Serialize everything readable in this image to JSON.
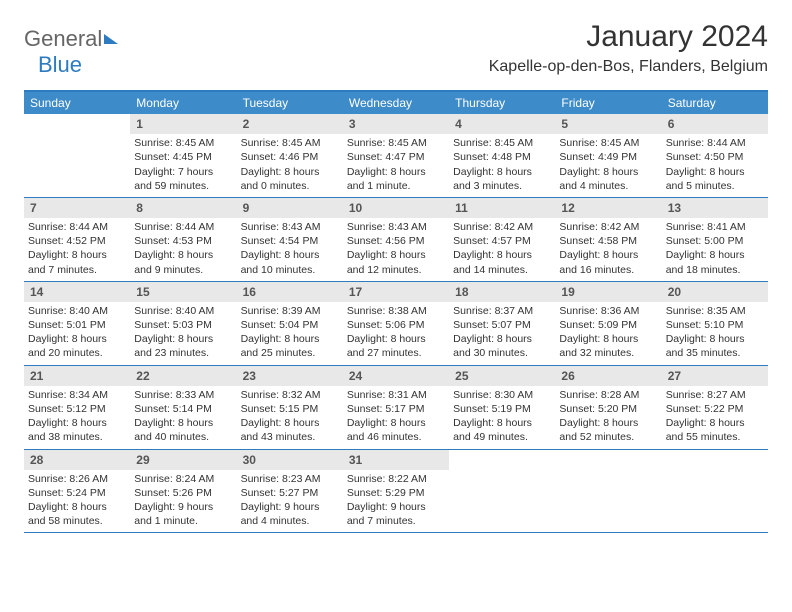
{
  "brand": {
    "part1": "General",
    "part2": "Blue"
  },
  "title": "January 2024",
  "location": "Kapelle-op-den-Bos, Flanders, Belgium",
  "colors": {
    "accent": "#2d7bc0",
    "header_bg": "#3d8bc8",
    "daynum_bg": "#e8e8e8",
    "text": "#333333"
  },
  "day_names": [
    "Sunday",
    "Monday",
    "Tuesday",
    "Wednesday",
    "Thursday",
    "Friday",
    "Saturday"
  ],
  "weeks": [
    [
      null,
      {
        "n": "1",
        "sr": "Sunrise: 8:45 AM",
        "ss": "Sunset: 4:45 PM",
        "dl": "Daylight: 7 hours and 59 minutes."
      },
      {
        "n": "2",
        "sr": "Sunrise: 8:45 AM",
        "ss": "Sunset: 4:46 PM",
        "dl": "Daylight: 8 hours and 0 minutes."
      },
      {
        "n": "3",
        "sr": "Sunrise: 8:45 AM",
        "ss": "Sunset: 4:47 PM",
        "dl": "Daylight: 8 hours and 1 minute."
      },
      {
        "n": "4",
        "sr": "Sunrise: 8:45 AM",
        "ss": "Sunset: 4:48 PM",
        "dl": "Daylight: 8 hours and 3 minutes."
      },
      {
        "n": "5",
        "sr": "Sunrise: 8:45 AM",
        "ss": "Sunset: 4:49 PM",
        "dl": "Daylight: 8 hours and 4 minutes."
      },
      {
        "n": "6",
        "sr": "Sunrise: 8:44 AM",
        "ss": "Sunset: 4:50 PM",
        "dl": "Daylight: 8 hours and 5 minutes."
      }
    ],
    [
      {
        "n": "7",
        "sr": "Sunrise: 8:44 AM",
        "ss": "Sunset: 4:52 PM",
        "dl": "Daylight: 8 hours and 7 minutes."
      },
      {
        "n": "8",
        "sr": "Sunrise: 8:44 AM",
        "ss": "Sunset: 4:53 PM",
        "dl": "Daylight: 8 hours and 9 minutes."
      },
      {
        "n": "9",
        "sr": "Sunrise: 8:43 AM",
        "ss": "Sunset: 4:54 PM",
        "dl": "Daylight: 8 hours and 10 minutes."
      },
      {
        "n": "10",
        "sr": "Sunrise: 8:43 AM",
        "ss": "Sunset: 4:56 PM",
        "dl": "Daylight: 8 hours and 12 minutes."
      },
      {
        "n": "11",
        "sr": "Sunrise: 8:42 AM",
        "ss": "Sunset: 4:57 PM",
        "dl": "Daylight: 8 hours and 14 minutes."
      },
      {
        "n": "12",
        "sr": "Sunrise: 8:42 AM",
        "ss": "Sunset: 4:58 PM",
        "dl": "Daylight: 8 hours and 16 minutes."
      },
      {
        "n": "13",
        "sr": "Sunrise: 8:41 AM",
        "ss": "Sunset: 5:00 PM",
        "dl": "Daylight: 8 hours and 18 minutes."
      }
    ],
    [
      {
        "n": "14",
        "sr": "Sunrise: 8:40 AM",
        "ss": "Sunset: 5:01 PM",
        "dl": "Daylight: 8 hours and 20 minutes."
      },
      {
        "n": "15",
        "sr": "Sunrise: 8:40 AM",
        "ss": "Sunset: 5:03 PM",
        "dl": "Daylight: 8 hours and 23 minutes."
      },
      {
        "n": "16",
        "sr": "Sunrise: 8:39 AM",
        "ss": "Sunset: 5:04 PM",
        "dl": "Daylight: 8 hours and 25 minutes."
      },
      {
        "n": "17",
        "sr": "Sunrise: 8:38 AM",
        "ss": "Sunset: 5:06 PM",
        "dl": "Daylight: 8 hours and 27 minutes."
      },
      {
        "n": "18",
        "sr": "Sunrise: 8:37 AM",
        "ss": "Sunset: 5:07 PM",
        "dl": "Daylight: 8 hours and 30 minutes."
      },
      {
        "n": "19",
        "sr": "Sunrise: 8:36 AM",
        "ss": "Sunset: 5:09 PM",
        "dl": "Daylight: 8 hours and 32 minutes."
      },
      {
        "n": "20",
        "sr": "Sunrise: 8:35 AM",
        "ss": "Sunset: 5:10 PM",
        "dl": "Daylight: 8 hours and 35 minutes."
      }
    ],
    [
      {
        "n": "21",
        "sr": "Sunrise: 8:34 AM",
        "ss": "Sunset: 5:12 PM",
        "dl": "Daylight: 8 hours and 38 minutes."
      },
      {
        "n": "22",
        "sr": "Sunrise: 8:33 AM",
        "ss": "Sunset: 5:14 PM",
        "dl": "Daylight: 8 hours and 40 minutes."
      },
      {
        "n": "23",
        "sr": "Sunrise: 8:32 AM",
        "ss": "Sunset: 5:15 PM",
        "dl": "Daylight: 8 hours and 43 minutes."
      },
      {
        "n": "24",
        "sr": "Sunrise: 8:31 AM",
        "ss": "Sunset: 5:17 PM",
        "dl": "Daylight: 8 hours and 46 minutes."
      },
      {
        "n": "25",
        "sr": "Sunrise: 8:30 AM",
        "ss": "Sunset: 5:19 PM",
        "dl": "Daylight: 8 hours and 49 minutes."
      },
      {
        "n": "26",
        "sr": "Sunrise: 8:28 AM",
        "ss": "Sunset: 5:20 PM",
        "dl": "Daylight: 8 hours and 52 minutes."
      },
      {
        "n": "27",
        "sr": "Sunrise: 8:27 AM",
        "ss": "Sunset: 5:22 PM",
        "dl": "Daylight: 8 hours and 55 minutes."
      }
    ],
    [
      {
        "n": "28",
        "sr": "Sunrise: 8:26 AM",
        "ss": "Sunset: 5:24 PM",
        "dl": "Daylight: 8 hours and 58 minutes."
      },
      {
        "n": "29",
        "sr": "Sunrise: 8:24 AM",
        "ss": "Sunset: 5:26 PM",
        "dl": "Daylight: 9 hours and 1 minute."
      },
      {
        "n": "30",
        "sr": "Sunrise: 8:23 AM",
        "ss": "Sunset: 5:27 PM",
        "dl": "Daylight: 9 hours and 4 minutes."
      },
      {
        "n": "31",
        "sr": "Sunrise: 8:22 AM",
        "ss": "Sunset: 5:29 PM",
        "dl": "Daylight: 9 hours and 7 minutes."
      },
      null,
      null,
      null
    ]
  ]
}
